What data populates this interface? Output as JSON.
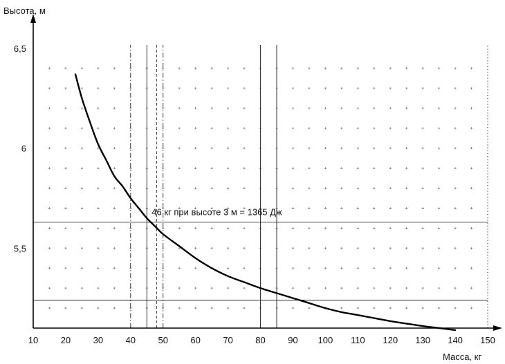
{
  "chart_data": {
    "type": "line",
    "ylabel": "Высота, м",
    "xlabel": "Масса, кг",
    "xlim": [
      10,
      150
    ],
    "ylim": [
      5.1,
      6.5
    ],
    "x_ticks": [
      10,
      20,
      30,
      40,
      50,
      60,
      70,
      80,
      90,
      100,
      110,
      120,
      130,
      140,
      150
    ],
    "y_ticks": [
      {
        "value": 6.5,
        "label": "6,5"
      },
      {
        "value": 6.0,
        "label": "6"
      },
      {
        "value": 5.5,
        "label": "5,5"
      }
    ],
    "grid": "dotted",
    "series": [
      {
        "x": [
          23,
          25,
          27.5,
          30,
          32.5,
          35,
          37.5,
          40,
          42.5,
          45,
          47.5,
          50,
          55,
          60,
          65,
          70,
          75,
          80,
          85,
          90,
          95,
          100,
          105,
          110,
          115,
          120,
          125,
          130,
          135,
          140
        ],
        "y": [
          6.37,
          6.25,
          6.13,
          6.02,
          5.94,
          5.86,
          5.81,
          5.75,
          5.7,
          5.65,
          5.61,
          5.57,
          5.51,
          5.45,
          5.4,
          5.36,
          5.33,
          5.3,
          5.275,
          5.25,
          5.225,
          5.2,
          5.18,
          5.165,
          5.15,
          5.135,
          5.122,
          5.11,
          5.1,
          5.09
        ]
      }
    ],
    "reference_lines": {
      "vertical_dashdot": [
        40,
        50
      ],
      "vertical_solid": [
        45,
        80,
        85
      ],
      "vertical_dashed": [
        48
      ],
      "vertical_dotted": [
        150
      ],
      "horizontal_solid": [
        5.63,
        5.24
      ]
    },
    "annotation": {
      "text": "46 кг при высоте 3 м = 1365 Дж",
      "x": 46.5,
      "y": 5.665
    }
  }
}
